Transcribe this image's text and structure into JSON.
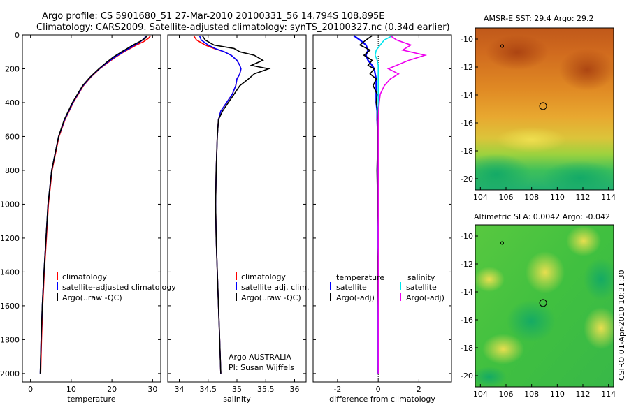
{
  "header": {
    "line1": "Argo profile: CS 5901680_51 27-Mar-2010 20100331_56 14.794S 108.895E",
    "line2": "Climatology: CARS2009. Satellite-adjusted climatology: synTS_20100327.nc (0.34d earlier)"
  },
  "colors": {
    "climatology": "#ff0000",
    "satellite": "#0000ff",
    "argo": "#000000",
    "sat_salinity": "#00e5ee",
    "argo_salinity": "#ee00ee"
  },
  "chart_data": [
    {
      "type": "line",
      "xlabel": "temperature",
      "ylim": [
        2050,
        0
      ],
      "xlim": [
        -2,
        32
      ],
      "xticks": [
        "0",
        "10",
        "20",
        "30"
      ],
      "xtick_values": [
        0,
        10,
        20,
        30
      ],
      "yticks": [
        "0",
        "200",
        "400",
        "600",
        "800",
        "1000",
        "1200",
        "1400",
        "1600",
        "1800",
        "2000"
      ],
      "ytick_values": [
        0,
        200,
        400,
        600,
        800,
        1000,
        1200,
        1400,
        1600,
        1800,
        2000
      ],
      "depth": [
        5,
        20,
        40,
        60,
        80,
        100,
        130,
        160,
        200,
        250,
        300,
        400,
        500,
        600,
        800,
        1000,
        1200,
        1400,
        1600,
        1800,
        2000
      ],
      "series": [
        {
          "name": "climatology",
          "color": "#ff0000",
          "values": [
            29.5,
            29.0,
            27.8,
            26.0,
            24.5,
            23.0,
            21.0,
            19.2,
            17.0,
            14.8,
            13.0,
            10.5,
            8.5,
            7.0,
            5.3,
            4.4,
            3.9,
            3.4,
            3.0,
            2.7,
            2.5
          ]
        },
        {
          "name": "satellite-adjusted climatology",
          "color": "#0000ff",
          "values": [
            28.3,
            28.0,
            27.0,
            25.6,
            24.2,
            22.8,
            20.8,
            19.0,
            16.9,
            14.7,
            12.9,
            10.4,
            8.4,
            6.9,
            5.2,
            4.3,
            3.8,
            3.3,
            2.9,
            2.6,
            2.4
          ]
        },
        {
          "name": "Argo(..raw -QC)",
          "color": "#000000",
          "values": [
            28.6,
            28.2,
            26.8,
            25.2,
            23.8,
            22.4,
            20.4,
            18.8,
            16.8,
            14.6,
            12.8,
            10.3,
            8.3,
            6.9,
            5.2,
            4.3,
            3.8,
            3.3,
            2.9,
            2.6,
            2.4
          ]
        }
      ]
    },
    {
      "type": "line",
      "xlabel": "salinity",
      "ylim": [
        2050,
        0
      ],
      "xlim": [
        33.8,
        36.2
      ],
      "xticks": [
        "34",
        "34.5",
        "35",
        "35.5",
        "36"
      ],
      "xtick_values": [
        34,
        34.5,
        35,
        35.5,
        36
      ],
      "depth": [
        5,
        30,
        60,
        80,
        100,
        120,
        150,
        180,
        200,
        230,
        260,
        300,
        350,
        400,
        450,
        500,
        600,
        800,
        1000,
        1200,
        1400,
        1600,
        1800,
        2000
      ],
      "series": [
        {
          "name": "climatology",
          "color": "#ff0000",
          "values": [
            34.25,
            34.3,
            34.45,
            34.6,
            34.78,
            34.9,
            35.0,
            35.05,
            35.07,
            35.05,
            35.0,
            34.98,
            34.92,
            34.82,
            34.72,
            34.68,
            34.66,
            34.64,
            34.63,
            34.64,
            34.66,
            34.68,
            34.7,
            34.72
          ]
        },
        {
          "name": "satellite adj. clim.",
          "color": "#0000ff",
          "values": [
            34.35,
            34.38,
            34.5,
            34.62,
            34.78,
            34.9,
            35.0,
            35.05,
            35.07,
            35.05,
            35.0,
            34.98,
            34.92,
            34.82,
            34.72,
            34.68,
            34.66,
            34.64,
            34.63,
            34.64,
            34.66,
            34.68,
            34.7,
            34.72
          ]
        },
        {
          "name": "Argo(..raw -QC)",
          "color": "#000000",
          "values": [
            34.4,
            34.45,
            34.6,
            34.95,
            35.05,
            35.3,
            35.45,
            35.25,
            35.55,
            35.3,
            35.2,
            35.05,
            34.95,
            34.85,
            34.75,
            34.68,
            34.66,
            34.64,
            34.63,
            34.64,
            34.66,
            34.68,
            34.7,
            34.72
          ]
        }
      ],
      "annotation": [
        "Argo AUSTRALIA",
        "PI: Susan Wijffels"
      ]
    },
    {
      "type": "line",
      "xlabel": "difference from climatology",
      "ylim": [
        2050,
        0
      ],
      "xlim": [
        -3.2,
        3.6
      ],
      "xticks": [
        "-2",
        "0",
        "2"
      ],
      "xtick_values": [
        -2,
        0,
        2
      ],
      "depth": [
        5,
        30,
        60,
        90,
        120,
        150,
        180,
        200,
        230,
        260,
        300,
        350,
        400,
        450,
        500,
        600,
        800,
        1000,
        1200,
        1400,
        1600,
        1800,
        2000
      ],
      "series": [
        {
          "name": "satellite",
          "group": "temperature",
          "color": "#0000ff",
          "values": [
            -1.2,
            -0.9,
            -0.6,
            -0.5,
            -0.6,
            -0.5,
            -0.3,
            -0.2,
            -0.15,
            -0.1,
            -0.1,
            -0.1,
            -0.1,
            -0.05,
            -0.05,
            -0.02,
            0,
            0,
            0,
            0,
            0,
            0,
            0
          ]
        },
        {
          "name": "Argo(-adj)",
          "group": "temperature",
          "color": "#000000",
          "values": [
            -0.3,
            -0.6,
            -0.9,
            -0.4,
            -0.7,
            -0.3,
            -0.5,
            -0.2,
            -0.4,
            -0.1,
            -0.25,
            -0.05,
            -0.1,
            -0.02,
            -0.05,
            -0.02,
            -0.06,
            -0.03,
            0.02,
            -0.04,
            0,
            0.01,
            0
          ]
        },
        {
          "name": "satellite",
          "group": "salinity",
          "color": "#00e5ee",
          "values": [
            0.7,
            0.3,
            0.1,
            -0.1,
            -0.15,
            -0.05,
            0,
            0,
            0,
            0,
            0,
            0,
            0,
            0,
            0,
            0,
            0,
            0,
            0,
            0,
            0,
            0,
            0
          ]
        },
        {
          "name": "Argo(-adj)",
          "group": "salinity",
          "color": "#ee00ee",
          "values": [
            0.6,
            0.9,
            1.6,
            1.2,
            2.3,
            1.5,
            0.9,
            0.5,
            1.0,
            0.6,
            0.3,
            0.1,
            0.05,
            0.02,
            0,
            0,
            0,
            0,
            0,
            0,
            0,
            0,
            0
          ]
        }
      ],
      "legend_temp_title": "temperature",
      "legend_sal_title": "salinity"
    }
  ],
  "maps": {
    "sst": {
      "title": "AMSR-E SST: 29.4  Argo: 29.2",
      "xticks": [
        "104",
        "106",
        "108",
        "110",
        "112",
        "114"
      ],
      "yticks": [
        "-10",
        "-12",
        "-14",
        "-16",
        "-18",
        "-20"
      ]
    },
    "sla": {
      "title": "Altimetric SLA: 0.0042  Argo: -0.042",
      "xticks": [
        "104",
        "106",
        "108",
        "110",
        "112",
        "114"
      ],
      "yticks": [
        "-10",
        "-12",
        "-14",
        "-16",
        "-18",
        "-20"
      ]
    },
    "position": {
      "lon": 108.895,
      "lat": -14.794
    },
    "island": {
      "lon": 105.7,
      "lat": -10.5
    }
  },
  "footer": {
    "timestamp": "CSIRO 01-Apr-2010 10:31:30"
  }
}
